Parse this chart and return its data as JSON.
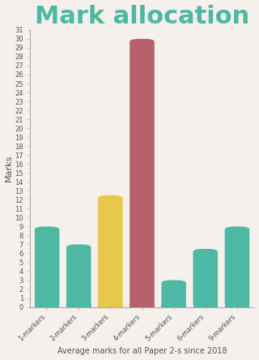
{
  "categories": [
    "1-markers",
    "2-markers",
    "3-markers",
    "4-markers",
    "5-markers",
    "6-markers",
    "9-markers"
  ],
  "values": [
    9,
    7,
    12.5,
    30,
    3,
    6.5,
    9
  ],
  "bar_colors": [
    "#4db8a4",
    "#4db8a4",
    "#e8c84a",
    "#b5606a",
    "#4db8a4",
    "#4db8a4",
    "#4db8a4"
  ],
  "title": "Mark allocation",
  "title_color": "#4db8a4",
  "ylabel": "Marks",
  "xlabel": "Average marks for all Paper 2-s since 2018",
  "ylim": [
    0,
    31
  ],
  "yticks": [
    0,
    1,
    2,
    3,
    4,
    5,
    6,
    7,
    8,
    9,
    10,
    11,
    12,
    13,
    14,
    15,
    16,
    17,
    18,
    19,
    20,
    21,
    22,
    23,
    24,
    25,
    26,
    27,
    28,
    29,
    30,
    31
  ],
  "background_color": "#f5f0eb",
  "bar_width": 0.78,
  "title_fontsize": 22,
  "ylabel_fontsize": 8,
  "xlabel_fontsize": 7,
  "tick_fontsize": 6
}
